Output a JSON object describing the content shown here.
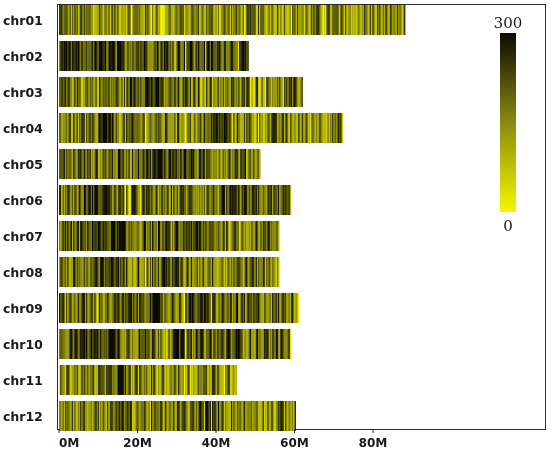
{
  "chart_data": {
    "type": "heatmap",
    "title": "",
    "xlabel": "",
    "ylabel": "",
    "x_unit": "Mb",
    "xlim": [
      0,
      100
    ],
    "x_ticks": [
      {
        "value": 0,
        "label": "0M"
      },
      {
        "value": 20,
        "label": "20M"
      },
      {
        "value": 40,
        "label": "40M"
      },
      {
        "value": 60,
        "label": "60M"
      },
      {
        "value": 80,
        "label": "80M"
      }
    ],
    "color_scale": {
      "min": 0,
      "max": 300,
      "min_label": "0",
      "max_label": "300",
      "low_color": "#f6f600",
      "mid_color": "#8a8a10",
      "high_color": "#0b0b04"
    },
    "chromosomes": [
      {
        "name": "chr01",
        "length": 88,
        "mean_density": 150,
        "hotspots": [
          [
            26,
            1.5,
            15
          ],
          [
            0,
            2,
            210
          ]
        ]
      },
      {
        "name": "chr02",
        "length": 48,
        "mean_density": 235,
        "hotspots": []
      },
      {
        "name": "chr03",
        "length": 62,
        "mean_density": 175,
        "hotspots": [
          [
            22,
            8,
            255
          ]
        ]
      },
      {
        "name": "chr04",
        "length": 72,
        "mean_density": 165,
        "hotspots": [
          [
            12,
            4,
            260
          ],
          [
            40,
            6,
            245
          ]
        ]
      },
      {
        "name": "chr05",
        "length": 51,
        "mean_density": 195,
        "hotspots": [
          [
            27,
            15,
            250
          ]
        ]
      },
      {
        "name": "chr06",
        "length": 59,
        "mean_density": 185,
        "hotspots": [
          [
            10,
            8,
            270
          ],
          [
            18,
            0.6,
            10
          ]
        ]
      },
      {
        "name": "chr07",
        "length": 56,
        "mean_density": 190,
        "hotspots": [
          [
            12,
            10,
            255
          ],
          [
            34,
            4,
            255
          ]
        ]
      },
      {
        "name": "chr08",
        "length": 56,
        "mean_density": 185,
        "hotspots": [
          [
            13,
            5,
            260
          ],
          [
            28,
            4,
            245
          ]
        ]
      },
      {
        "name": "chr09",
        "length": 61,
        "mean_density": 185,
        "hotspots": [
          [
            22,
            9,
            250
          ],
          [
            36,
            6,
            240
          ]
        ]
      },
      {
        "name": "chr10",
        "length": 59,
        "mean_density": 200,
        "hotspots": [
          [
            9,
            13,
            265
          ],
          [
            31,
            4,
            255
          ],
          [
            44,
            3,
            245
          ]
        ]
      },
      {
        "name": "chr11",
        "length": 45,
        "mean_density": 160,
        "hotspots": [
          [
            15,
            4,
            230
          ]
        ]
      },
      {
        "name": "chr12",
        "length": 60,
        "mean_density": 170,
        "hotspots": [
          [
            16,
            3,
            235
          ],
          [
            38,
            6,
            225
          ]
        ]
      }
    ],
    "grid": false,
    "legend": "right"
  }
}
